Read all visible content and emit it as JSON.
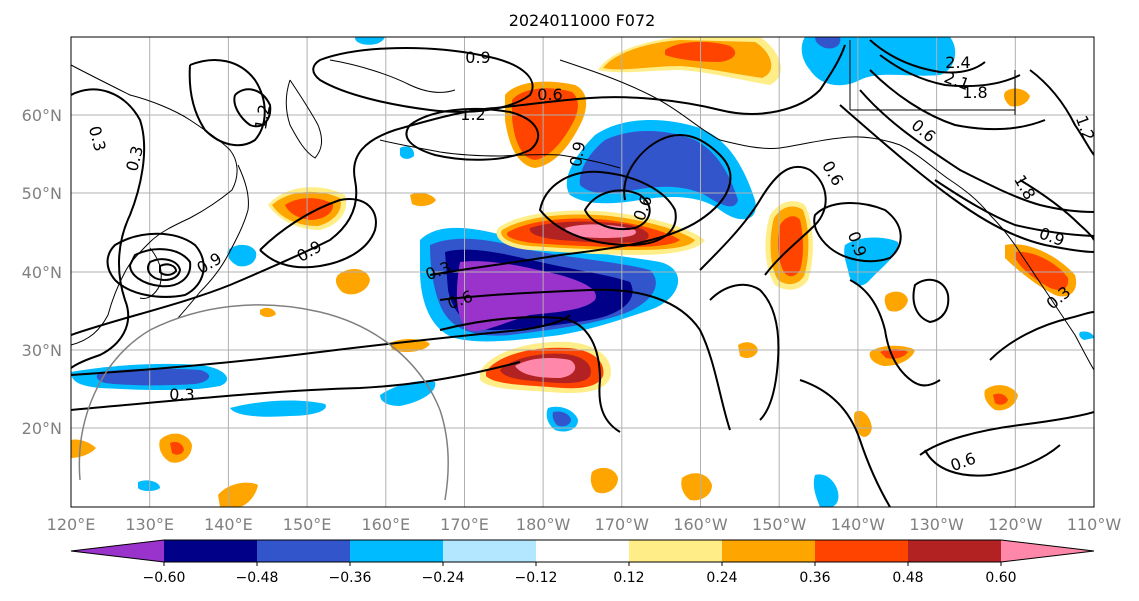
{
  "title": "2024011000 F072",
  "lon_ticks": [
    "120°E",
    "130°E",
    "140°E",
    "150°E",
    "160°E",
    "170°E",
    "180°W",
    "170°W",
    "160°W",
    "150°W",
    "140°W",
    "130°W",
    "120°W",
    "110°W"
  ],
  "lat_ticks": [
    "60°N",
    "50°N",
    "40°N",
    "30°N",
    "20°N"
  ],
  "colorbar": {
    "colors": [
      "#9933cc",
      "#000088",
      "#3355cc",
      "#00bbff",
      "#b3e6ff",
      "#ffffff",
      "#ffee88",
      "#ffa500",
      "#ff4400",
      "#b22222",
      "#ff88aa"
    ],
    "tick_labels": [
      "−0.60",
      "−0.48",
      "−0.36",
      "−0.24",
      "−0.12",
      "0.12",
      "0.24",
      "0.36",
      "0.48",
      "0.60"
    ]
  },
  "contour_labels": [
    "0.9",
    "0.6",
    "1.2",
    "0.3",
    "1.2",
    "0.3",
    "0.9",
    "0.9",
    "0.6",
    "1.8",
    "2.1",
    "2.4",
    "0.6",
    "1.2",
    "0.9",
    "0.3",
    "0.6",
    "0.3",
    "0.6",
    "0.9",
    "1.8",
    "0.9",
    "0.3",
    "0.6"
  ]
}
